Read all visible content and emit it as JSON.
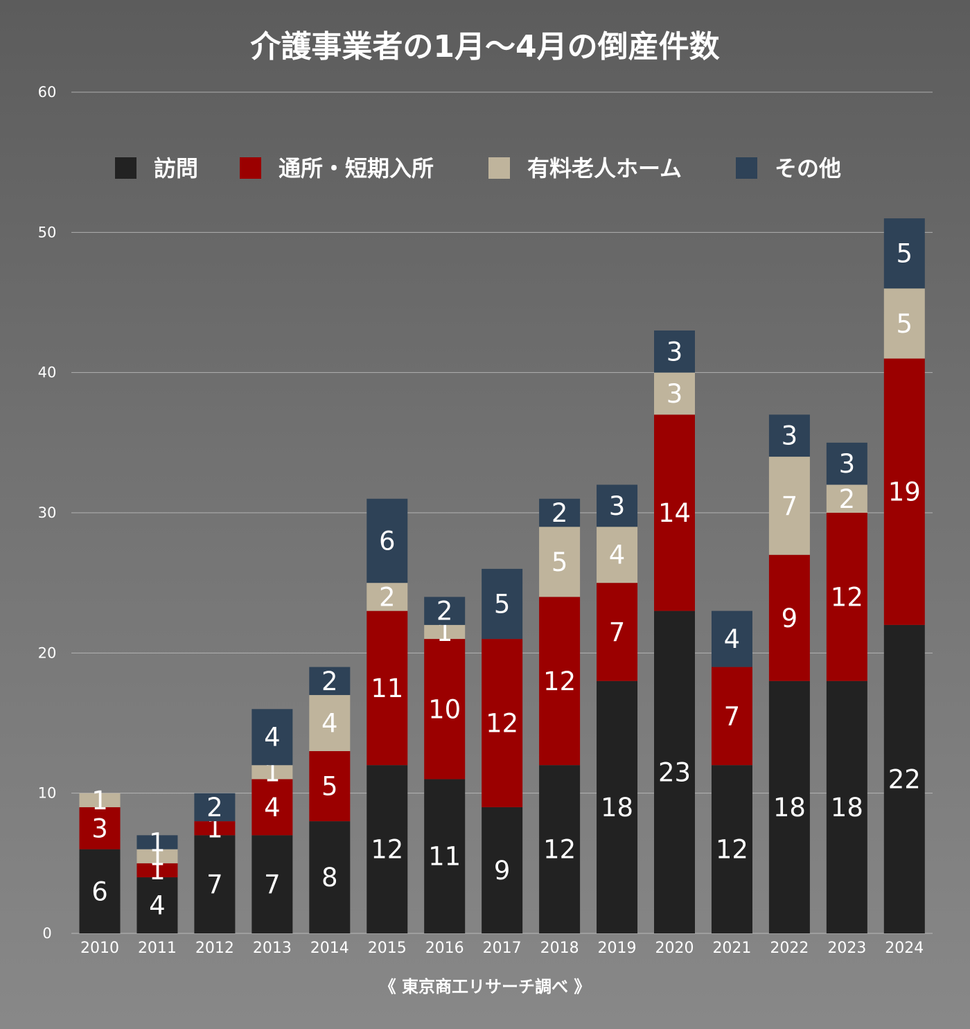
{
  "chart_data": {
    "type": "bar",
    "stacked": true,
    "title": "介護事業者の1月〜4月の倒産件数",
    "categories": [
      "2010",
      "2011",
      "2012",
      "2013",
      "2014",
      "2015",
      "2016",
      "2017",
      "2018",
      "2019",
      "2020",
      "2021",
      "2022",
      "2023",
      "2024"
    ],
    "series": [
      {
        "name": "訪問",
        "color": "#222222",
        "values": [
          6,
          4,
          7,
          7,
          8,
          12,
          11,
          9,
          12,
          18,
          23,
          12,
          18,
          18,
          22
        ]
      },
      {
        "name": "通所・短期入所",
        "color": "#9b0000",
        "values": [
          3,
          1,
          1,
          4,
          5,
          11,
          10,
          12,
          12,
          7,
          14,
          7,
          9,
          12,
          19
        ]
      },
      {
        "name": "有料老人ホーム",
        "color": "#bfb49c",
        "values": [
          1,
          1,
          0,
          1,
          4,
          2,
          1,
          0,
          5,
          4,
          3,
          0,
          7,
          2,
          5
        ]
      },
      {
        "name": "その他",
        "color": "#2e4257",
        "values": [
          0,
          1,
          2,
          4,
          2,
          6,
          2,
          5,
          2,
          3,
          3,
          4,
          3,
          3,
          5
        ]
      }
    ],
    "ylim": [
      0,
      60
    ],
    "yticks": [
      0,
      10,
      20,
      30,
      40,
      50,
      60
    ],
    "grid": true,
    "legend_position": "top",
    "source": "《 東京商工リサーチ調べ 》"
  }
}
